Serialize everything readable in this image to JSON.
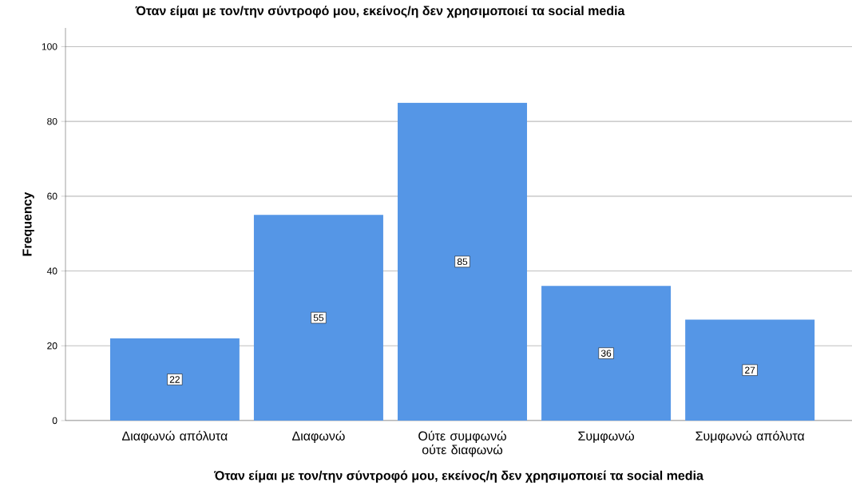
{
  "chart_data": {
    "type": "bar",
    "title": "Όταν είμαι με τον/την σύντροφό μου, εκείνος/η δεν χρησιμοποιεί τα social media",
    "xlabel": "Όταν είμαι με τον/την σύντροφό μου, εκείνος/η δεν χρησιμοποιεί τα social media",
    "ylabel": "Frequency",
    "categories": [
      "Διαφωνώ απόλυτα",
      "Διαφωνώ",
      "Ούτε συμφωνώ ούτε διαφωνώ",
      "Συμφωνώ",
      "Συμφωνώ απόλυτα"
    ],
    "values": [
      22,
      55,
      85,
      36,
      27
    ],
    "color": "#5596e6",
    "ylim": [
      0,
      105
    ],
    "yticks": [
      0,
      20,
      40,
      60,
      80,
      100
    ],
    "grid": "y",
    "data_labels": true
  }
}
